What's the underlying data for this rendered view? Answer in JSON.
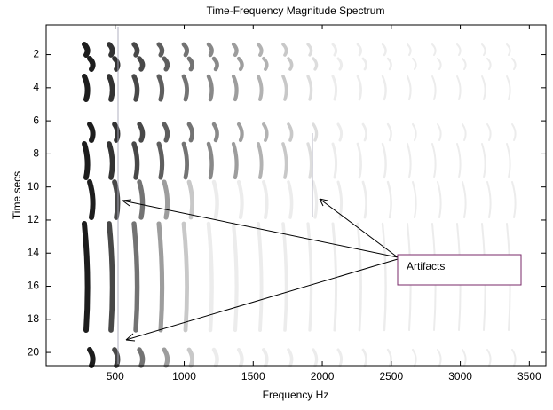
{
  "chart_data": {
    "type": "heatmap",
    "title": "Time-Frequency Magnitude Spectrum",
    "x_label": "Frequency Hz",
    "y_label": "Time secs",
    "xlim": [
      0,
      3620
    ],
    "xticks": [
      500,
      1000,
      1500,
      2000,
      2500,
      3000,
      3500
    ],
    "ylim": [
      0.2,
      20.8
    ],
    "yticks": [
      2,
      4,
      6,
      8,
      10,
      12,
      14,
      16,
      18,
      20
    ],
    "y_reversed": true,
    "annotation": "Artifacts"
  }
}
